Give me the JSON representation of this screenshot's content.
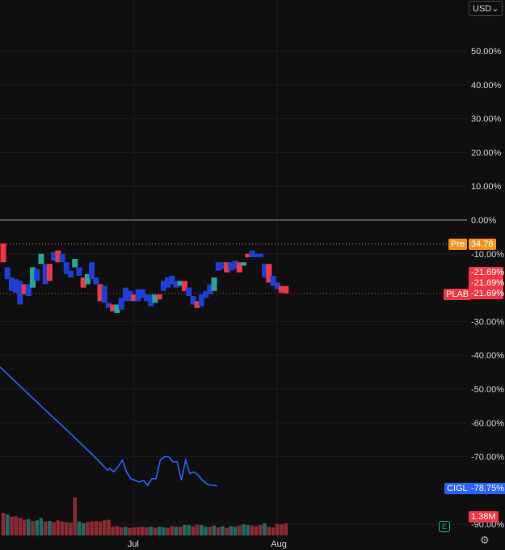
{
  "toolbar": {
    "currency": "USD"
  },
  "axis": {
    "y_ticks": [
      {
        "value": 50,
        "label": "50.00%"
      },
      {
        "value": 40,
        "label": "40.00%"
      },
      {
        "value": 30,
        "label": "30.00%"
      },
      {
        "value": 20,
        "label": "20.00%"
      },
      {
        "value": 10,
        "label": "10.00%"
      },
      {
        "value": 0,
        "label": "0.00%"
      },
      {
        "value": -10,
        "label": "-10.00%"
      },
      {
        "value": -30,
        "label": "-30.00%"
      },
      {
        "value": -40,
        "label": "-40.00%"
      },
      {
        "value": -50,
        "label": "-50.00%"
      },
      {
        "value": -60,
        "label": "-60.00%"
      },
      {
        "value": -70,
        "label": "-70.00%"
      },
      {
        "value": -90,
        "label": "-90.00%"
      }
    ],
    "x_ticks": [
      {
        "index": 31,
        "label": "Jul"
      },
      {
        "index": 65,
        "label": "Aug"
      }
    ]
  },
  "tags": {
    "pre_label": "Pre",
    "pre_value": "34.78",
    "plab_values": [
      "-21.69%",
      "-21.69%",
      "-21.69%"
    ],
    "plab_label": "PLAB",
    "cigl_label": "CIGL",
    "cigl_value": "-78.75%",
    "volume_value": "1.38M"
  },
  "colors": {
    "up": "#26a69a",
    "down": "#f23645",
    "blue_candle": "#1e3fd6",
    "cigl_line": "#2962ff",
    "pre": "#f7931a",
    "zero_line": "#9598a1"
  },
  "chart_data": {
    "type": "candlestick",
    "title": "",
    "ylim": [
      -92,
      60
    ],
    "pre_market_pct": -7.1,
    "series": [
      {
        "name": "PLAB",
        "candles": [
          {
            "o": -7,
            "c": -12.5,
            "d": "down"
          },
          {
            "o": -14,
            "c": -17.5,
            "d": "blue"
          },
          {
            "o": -17,
            "c": -21,
            "d": "blue"
          },
          {
            "o": -17.5,
            "c": -21.5,
            "d": "blue"
          },
          {
            "o": -18,
            "c": -25,
            "d": "blue"
          },
          {
            "o": -19,
            "c": -22,
            "d": "down"
          },
          {
            "o": -22.5,
            "c": -19,
            "d": "blue"
          },
          {
            "o": -20,
            "c": -14,
            "d": "up"
          },
          {
            "o": -18,
            "c": -14.5,
            "d": "blue"
          },
          {
            "o": -13,
            "c": -10,
            "d": "up"
          },
          {
            "o": -13,
            "c": -19,
            "d": "blue"
          },
          {
            "o": -13,
            "c": -18,
            "d": "down"
          },
          {
            "o": -12,
            "c": -9.5,
            "d": "blue"
          },
          {
            "o": -9,
            "c": -12.5,
            "d": "down"
          },
          {
            "o": -10,
            "c": -12.5,
            "d": "blue"
          },
          {
            "o": -12.5,
            "c": -16,
            "d": "blue"
          },
          {
            "o": -15,
            "c": -17,
            "d": "blue"
          },
          {
            "o": -14,
            "c": -11.5,
            "d": "up"
          },
          {
            "o": -14,
            "c": -16.5,
            "d": "blue"
          },
          {
            "o": -17,
            "c": -20,
            "d": "down"
          },
          {
            "o": -19,
            "c": -16,
            "d": "up"
          },
          {
            "o": -12.5,
            "c": -17.5,
            "d": "blue"
          },
          {
            "o": -17,
            "c": -19,
            "d": "blue"
          },
          {
            "o": -19,
            "c": -24,
            "d": "down"
          },
          {
            "o": -19.5,
            "c": -24.5,
            "d": "blue"
          },
          {
            "o": -24.5,
            "c": -26,
            "d": "blue"
          },
          {
            "o": -25,
            "c": -27,
            "d": "down"
          },
          {
            "o": -25,
            "c": -27.5,
            "d": "up"
          },
          {
            "o": -23,
            "c": -26.5,
            "d": "blue"
          },
          {
            "o": -20,
            "c": -24,
            "d": "blue"
          },
          {
            "o": -21,
            "c": -24,
            "d": "blue"
          },
          {
            "o": -22,
            "c": -24,
            "d": "down"
          },
          {
            "o": -20.5,
            "c": -24,
            "d": "blue"
          },
          {
            "o": -20.5,
            "c": -23,
            "d": "blue"
          },
          {
            "o": -22,
            "c": -24,
            "d": "blue"
          },
          {
            "o": -22,
            "c": -25.5,
            "d": "blue"
          },
          {
            "o": -24.5,
            "c": -22,
            "d": "up"
          },
          {
            "o": -22,
            "c": -23.5,
            "d": "down"
          },
          {
            "o": -18,
            "c": -21,
            "d": "blue"
          },
          {
            "o": -17,
            "c": -20,
            "d": "blue"
          },
          {
            "o": -16.5,
            "c": -19,
            "d": "blue"
          },
          {
            "o": -18,
            "c": -20,
            "d": "blue"
          },
          {
            "o": -18,
            "c": -19.5,
            "d": "up"
          },
          {
            "o": -18,
            "c": -21,
            "d": "down"
          },
          {
            "o": -20,
            "c": -22.5,
            "d": "blue"
          },
          {
            "o": -22.5,
            "c": -25,
            "d": "blue"
          },
          {
            "o": -24,
            "c": -26,
            "d": "down"
          },
          {
            "o": -22,
            "c": -25.5,
            "d": "blue"
          },
          {
            "o": -21,
            "c": -23,
            "d": "blue"
          },
          {
            "o": -19,
            "c": -22,
            "d": "blue"
          },
          {
            "o": -21,
            "c": -17,
            "d": "up"
          },
          {
            "o": -12.5,
            "c": -15,
            "d": "blue"
          },
          {
            "o": -12.5,
            "c": -14.5,
            "d": "blue"
          },
          {
            "o": -12.5,
            "c": -15.5,
            "d": "down"
          },
          {
            "o": -12.5,
            "c": -15,
            "d": "blue"
          },
          {
            "o": -12,
            "c": -14.5,
            "d": "blue"
          },
          {
            "o": -12.5,
            "c": -15.5,
            "d": "down"
          },
          {
            "o": -12.5,
            "c": -13.5,
            "d": "up"
          },
          {
            "o": -10,
            "c": -11,
            "d": "down"
          },
          {
            "o": -9,
            "c": -11,
            "d": "blue"
          },
          {
            "o": -10,
            "c": -11,
            "d": "blue"
          },
          {
            "o": -10,
            "c": -11,
            "d": "blue"
          },
          {
            "o": -13,
            "c": -17,
            "d": "blue"
          },
          {
            "o": -13,
            "c": -18.5,
            "d": "down"
          },
          {
            "o": -16.5,
            "c": -19.5,
            "d": "blue"
          },
          {
            "o": -18.5,
            "c": -20.5,
            "d": "blue"
          },
          {
            "o": -19.5,
            "c": -21.5,
            "d": "down"
          },
          {
            "o": -19.5,
            "c": -21.7,
            "d": "down"
          }
        ]
      },
      {
        "name": "CIGL",
        "type": "line",
        "points": [
          {
            "i": 0,
            "y": -43.5
          },
          {
            "i": 11,
            "y": -50
          },
          {
            "i": 22,
            "y": -56.5
          },
          {
            "i": 34,
            "y": -63.5
          },
          {
            "i": 44,
            "y": -69.5
          },
          {
            "i": 51,
            "y": -74
          },
          {
            "i": 52,
            "y": -73.5
          },
          {
            "i": 54,
            "y": -74.5
          },
          {
            "i": 56,
            "y": -73
          },
          {
            "i": 58,
            "y": -71
          },
          {
            "i": 60,
            "y": -74.5
          },
          {
            "i": 62,
            "y": -76.5
          },
          {
            "i": 64,
            "y": -77
          },
          {
            "i": 66,
            "y": -77.5
          },
          {
            "i": 68,
            "y": -77
          },
          {
            "i": 70,
            "y": -78.5
          },
          {
            "i": 72,
            "y": -76.5
          },
          {
            "i": 74,
            "y": -76.5
          },
          {
            "i": 76,
            "y": -71
          },
          {
            "i": 78,
            "y": -70
          },
          {
            "i": 80,
            "y": -70
          },
          {
            "i": 82,
            "y": -71.5
          },
          {
            "i": 84,
            "y": -71.5
          },
          {
            "i": 86,
            "y": -77
          },
          {
            "i": 88,
            "y": -71
          },
          {
            "i": 90,
            "y": -75
          },
          {
            "i": 92,
            "y": -74.5
          },
          {
            "i": 94,
            "y": -75.5
          },
          {
            "i": 96,
            "y": -77
          },
          {
            "i": 98,
            "y": -78
          },
          {
            "i": 100,
            "y": -78.5
          },
          {
            "i": 102,
            "y": -78.5
          },
          {
            "i": 103,
            "y": -78.75
          }
        ]
      }
    ],
    "volume": [
      {
        "v": 0.78,
        "d": "down"
      },
      {
        "v": 0.72,
        "d": "up"
      },
      {
        "v": 0.64,
        "d": "down"
      },
      {
        "v": 0.66,
        "d": "down"
      },
      {
        "v": 0.6,
        "d": "down"
      },
      {
        "v": 0.54,
        "d": "down"
      },
      {
        "v": 0.56,
        "d": "up"
      },
      {
        "v": 0.5,
        "d": "down"
      },
      {
        "v": 0.52,
        "d": "up"
      },
      {
        "v": 0.6,
        "d": "up"
      },
      {
        "v": 0.48,
        "d": "down"
      },
      {
        "v": 0.5,
        "d": "up"
      },
      {
        "v": 0.45,
        "d": "down"
      },
      {
        "v": 0.52,
        "d": "down"
      },
      {
        "v": 0.48,
        "d": "down"
      },
      {
        "v": 0.46,
        "d": "down"
      },
      {
        "v": 0.44,
        "d": "down"
      },
      {
        "v": 1.3,
        "d": "down"
      },
      {
        "v": 0.48,
        "d": "up"
      },
      {
        "v": 0.42,
        "d": "up"
      },
      {
        "v": 0.46,
        "d": "down"
      },
      {
        "v": 0.48,
        "d": "down"
      },
      {
        "v": 0.5,
        "d": "down"
      },
      {
        "v": 0.48,
        "d": "down"
      },
      {
        "v": 0.52,
        "d": "down"
      },
      {
        "v": 0.54,
        "d": "down"
      },
      {
        "v": 0.3,
        "d": "down"
      },
      {
        "v": 0.32,
        "d": "down"
      },
      {
        "v": 0.28,
        "d": "down"
      },
      {
        "v": 0.3,
        "d": "up"
      },
      {
        "v": 0.26,
        "d": "down"
      },
      {
        "v": 0.28,
        "d": "down"
      },
      {
        "v": 0.28,
        "d": "down"
      },
      {
        "v": 0.3,
        "d": "down"
      },
      {
        "v": 0.28,
        "d": "down"
      },
      {
        "v": 0.3,
        "d": "up"
      },
      {
        "v": 0.26,
        "d": "down"
      },
      {
        "v": 0.3,
        "d": "up"
      },
      {
        "v": 0.28,
        "d": "up"
      },
      {
        "v": 0.26,
        "d": "down"
      },
      {
        "v": 0.32,
        "d": "down"
      },
      {
        "v": 0.3,
        "d": "up"
      },
      {
        "v": 0.3,
        "d": "down"
      },
      {
        "v": 0.36,
        "d": "up"
      },
      {
        "v": 0.36,
        "d": "up"
      },
      {
        "v": 0.32,
        "d": "down"
      },
      {
        "v": 0.38,
        "d": "down"
      },
      {
        "v": 0.36,
        "d": "up"
      },
      {
        "v": 0.3,
        "d": "up"
      },
      {
        "v": 0.3,
        "d": "down"
      },
      {
        "v": 0.34,
        "d": "up"
      },
      {
        "v": 0.28,
        "d": "down"
      },
      {
        "v": 0.32,
        "d": "up"
      },
      {
        "v": 0.26,
        "d": "down"
      },
      {
        "v": 0.32,
        "d": "up"
      },
      {
        "v": 0.3,
        "d": "up"
      },
      {
        "v": 0.34,
        "d": "down"
      },
      {
        "v": 0.38,
        "d": "up"
      },
      {
        "v": 0.36,
        "d": "up"
      },
      {
        "v": 0.34,
        "d": "down"
      },
      {
        "v": 0.32,
        "d": "down"
      },
      {
        "v": 0.36,
        "d": "down"
      },
      {
        "v": 0.42,
        "d": "up"
      },
      {
        "v": 0.3,
        "d": "down"
      },
      {
        "v": 0.28,
        "d": "down"
      },
      {
        "v": 0.4,
        "d": "down"
      },
      {
        "v": 0.38,
        "d": "down"
      },
      {
        "v": 0.42,
        "d": "down"
      }
    ]
  }
}
